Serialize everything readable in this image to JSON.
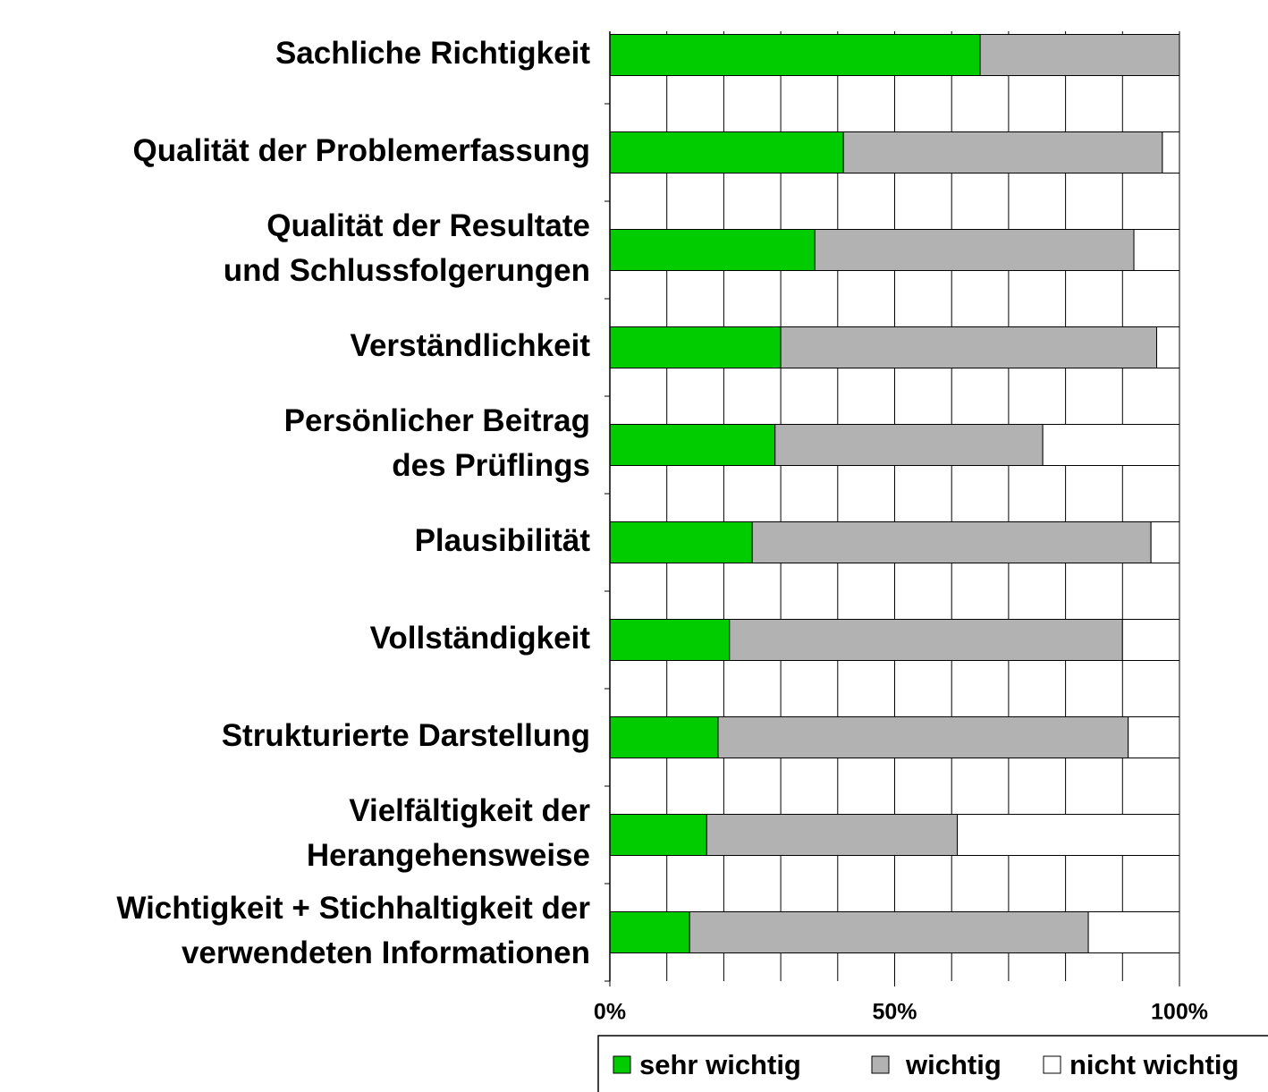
{
  "chart_data": {
    "type": "stacked-barh",
    "categories": [
      [
        "Sachliche Richtigkeit"
      ],
      [
        "Qualität der Problemerfassung"
      ],
      [
        "Qualität der Resultate",
        "und Schlussfolgerungen"
      ],
      [
        "Verständlichkeit"
      ],
      [
        "Persönlicher Beitrag",
        "des Prüflings"
      ],
      [
        "Plausibilität"
      ],
      [
        "Vollständigkeit"
      ],
      [
        "Strukturierte Darstellung"
      ],
      [
        "Vielfältigkeit der",
        "Herangehensweise"
      ],
      [
        "Wichtigkeit + Stichhaltigkeit der",
        "verwendeten Informationen"
      ]
    ],
    "series": [
      {
        "name": "sehr wichtig",
        "color": "#00cc00",
        "values": [
          65,
          41,
          36,
          30,
          29,
          25,
          21,
          19,
          17,
          14
        ]
      },
      {
        "name": "wichtig",
        "color": "#b2b2b2",
        "values": [
          35,
          56,
          56,
          66,
          47,
          70,
          69,
          72,
          44,
          70
        ]
      },
      {
        "name": "nicht wichtig",
        "color": "#ffffff",
        "values": [
          0,
          3,
          8,
          4,
          24,
          5,
          10,
          9,
          39,
          16
        ]
      }
    ],
    "xlim": [
      0,
      100
    ],
    "xticks": [
      {
        "value": 0,
        "label": "0%"
      },
      {
        "value": 50,
        "label": "50%"
      },
      {
        "value": 100,
        "label": "100%"
      }
    ],
    "grid_ticks": [
      0,
      10,
      20,
      30,
      40,
      50,
      60,
      70,
      80,
      90,
      100
    ],
    "grid": true,
    "legend": "bottom"
  }
}
